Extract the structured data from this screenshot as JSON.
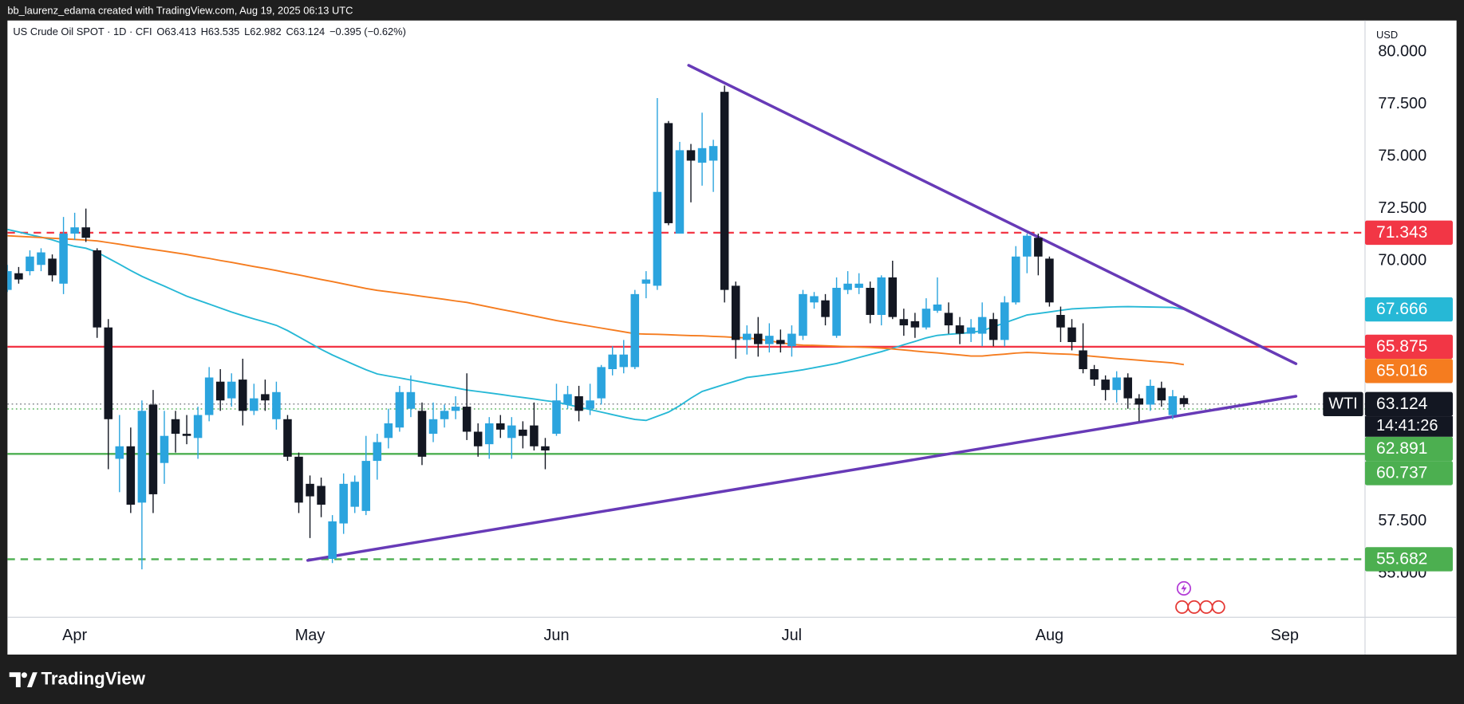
{
  "credit": "bb_laurenz_edama created with TradingView.com, Aug 19, 2025 06:13 UTC",
  "brand": "TradingView",
  "chart_data": {
    "type": "candlestick",
    "symbol": "US Crude Oil SPOT · 1D · CFI",
    "ohlc_letters": [
      "O",
      "H",
      "L",
      "C"
    ],
    "change_text": "−0.395 (−0.62%)",
    "currency": "USD",
    "symbol_tag": "WTI",
    "countdown": "14:41:26",
    "up_color": "#2ba4de",
    "down_color": "#131722",
    "categories": [
      null,
      null,
      null,
      null,
      null,
      null,
      "Apr",
      null,
      null,
      null,
      null,
      null,
      null,
      null,
      null,
      null,
      null,
      null,
      null,
      null,
      null,
      null,
      null,
      null,
      null,
      null,
      null,
      "May",
      null,
      null,
      null,
      null,
      null,
      null,
      null,
      null,
      null,
      null,
      null,
      null,
      null,
      null,
      null,
      null,
      null,
      null,
      null,
      null,
      null,
      "Jun",
      null,
      null,
      null,
      null,
      null,
      null,
      null,
      null,
      null,
      null,
      null,
      null,
      null,
      null,
      null,
      null,
      null,
      null,
      null,
      null,
      "Jul",
      null,
      null,
      null,
      null,
      null,
      null,
      null,
      null,
      null,
      null,
      null,
      null,
      null,
      null,
      null,
      null,
      null,
      null,
      null,
      null,
      null,
      null,
      "Aug",
      null,
      null,
      null,
      null,
      null,
      null,
      null,
      null,
      null,
      null,
      null,
      null,
      null,
      null,
      null,
      null,
      null,
      null,
      null,
      null,
      "Sep",
      null,
      null,
      null,
      null,
      null,
      null
    ],
    "open": [
      68.6,
      69.4,
      69.5,
      69.8,
      70.1,
      68.9,
      71.3,
      71.6,
      70.5,
      66.8,
      60.5,
      61.1,
      58.4,
      63.1,
      60.3,
      62.4,
      61.7,
      61.5,
      62.6,
      64.2,
      63.4,
      64.3,
      62.8,
      63.6,
      62.4,
      62.4,
      60.6,
      59.3,
      59.2,
      55.7,
      57.4,
      58.2,
      58.0,
      60.4,
      61.5,
      62.0,
      62.9,
      62.8,
      61.7,
      62.4,
      62.8,
      63.0,
      61.8,
      61.2,
      62.2,
      61.5,
      61.9,
      62.1,
      61.1,
      61.7,
      63.1,
      63.5,
      62.9,
      63.4,
      64.8,
      64.9,
      64.9,
      68.9,
      68.8,
      76.6,
      71.3,
      75.3,
      74.7,
      74.8,
      78.1,
      68.8,
      66.2,
      66.5,
      66.0,
      66.2,
      65.9,
      66.4,
      68.0,
      68.1,
      66.4,
      68.6,
      68.7,
      68.7,
      67.4,
      69.2,
      67.2,
      67.1,
      66.8,
      67.6,
      67.5,
      66.9,
      66.5,
      66.5,
      67.2,
      66.2,
      68.0,
      70.2,
      71.1,
      70.1,
      67.4,
      66.8,
      65.7,
      64.8,
      64.3,
      63.8,
      64.4,
      63.4,
      63.1,
      63.9,
      62.6,
      63.413,
      null,
      null,
      null,
      null,
      null,
      null,
      null,
      null,
      null,
      null,
      null,
      null,
      null,
      null,
      null
    ],
    "high": [
      69.8,
      69.7,
      70.5,
      70.6,
      70.3,
      72.1,
      72.3,
      72.5,
      70.6,
      67.2,
      62.6,
      62.0,
      63.3,
      63.8,
      62.8,
      62.8,
      62.6,
      63.0,
      64.9,
      64.8,
      64.6,
      65.3,
      64.1,
      64.3,
      64.2,
      62.6,
      60.8,
      59.7,
      59.6,
      57.8,
      59.8,
      59.7,
      61.6,
      61.7,
      62.9,
      64.0,
      64.5,
      63.2,
      63.2,
      63.1,
      63.5,
      64.6,
      62.2,
      62.5,
      62.6,
      62.5,
      62.3,
      63.2,
      61.5,
      64.1,
      64.0,
      64.0,
      64.1,
      65.0,
      65.9,
      66.2,
      68.6,
      69.5,
      77.8,
      76.7,
      75.7,
      75.6,
      77.1,
      75.8,
      78.4,
      69.0,
      66.9,
      67.3,
      67.0,
      66.7,
      66.9,
      68.6,
      68.5,
      68.4,
      69.2,
      69.5,
      69.4,
      69.0,
      69.3,
      70.0,
      67.7,
      67.5,
      68.2,
      69.2,
      68.0,
      67.3,
      67.2,
      68.0,
      67.5,
      68.3,
      70.7,
      71.3,
      71.3,
      70.2,
      67.8,
      67.2,
      67.0,
      65.0,
      64.5,
      64.7,
      64.6,
      63.6,
      64.3,
      64.2,
      63.8,
      63.535,
      null,
      null,
      null,
      null,
      null,
      null,
      null,
      null,
      null,
      null,
      null,
      null,
      null,
      null,
      null
    ],
    "low": [
      68.5,
      68.9,
      69.3,
      69.5,
      69.0,
      68.4,
      71.0,
      70.9,
      66.3,
      60.0,
      58.9,
      57.9,
      55.2,
      57.9,
      59.3,
      60.8,
      61.2,
      60.5,
      62.3,
      62.8,
      63.0,
      62.1,
      62.6,
      62.8,
      61.9,
      60.4,
      57.9,
      56.7,
      57.7,
      55.5,
      56.9,
      57.9,
      57.8,
      59.5,
      61.0,
      61.8,
      62.5,
      60.2,
      61.3,
      62.0,
      62.4,
      61.4,
      60.6,
      60.5,
      61.5,
      60.5,
      61.0,
      60.9,
      60.0,
      61.6,
      62.9,
      62.3,
      62.6,
      63.1,
      64.5,
      64.6,
      64.8,
      68.2,
      68.6,
      71.7,
      71.3,
      72.8,
      73.6,
      73.3,
      68.0,
      65.3,
      65.5,
      65.4,
      65.6,
      65.6,
      65.4,
      66.2,
      67.7,
      66.9,
      66.3,
      68.4,
      68.4,
      67.0,
      66.9,
      67.2,
      66.4,
      66.3,
      66.7,
      67.5,
      66.5,
      66.0,
      66.1,
      65.9,
      65.9,
      65.9,
      67.9,
      69.4,
      69.3,
      67.8,
      66.1,
      65.7,
      64.6,
      64.0,
      63.3,
      63.2,
      62.9,
      62.3,
      62.8,
      63.0,
      62.4,
      62.982,
      null,
      null,
      null,
      null,
      null,
      null,
      null,
      null,
      null,
      null,
      null,
      null,
      null,
      null,
      null
    ],
    "close": [
      69.5,
      69.1,
      70.2,
      70.4,
      69.3,
      71.3,
      71.6,
      71.1,
      66.8,
      62.4,
      61.1,
      58.3,
      62.8,
      58.8,
      61.6,
      61.7,
      61.6,
      62.6,
      64.4,
      63.3,
      64.2,
      62.8,
      63.4,
      63.3,
      63.7,
      60.6,
      58.4,
      58.7,
      58.3,
      57.5,
      59.3,
      59.4,
      60.4,
      61.3,
      62.2,
      63.7,
      63.7,
      60.6,
      62.4,
      62.8,
      63.0,
      61.8,
      61.1,
      62.2,
      61.9,
      62.1,
      61.6,
      61.1,
      60.9,
      63.3,
      63.6,
      62.8,
      63.3,
      64.9,
      65.5,
      65.5,
      68.4,
      69.1,
      73.3,
      71.8,
      75.3,
      74.8,
      75.4,
      75.5,
      68.6,
      66.2,
      66.5,
      66.0,
      66.4,
      66.0,
      66.5,
      68.4,
      68.3,
      67.3,
      68.7,
      68.9,
      68.9,
      67.4,
      69.2,
      67.3,
      66.9,
      66.8,
      67.7,
      67.9,
      66.9,
      66.5,
      66.8,
      67.3,
      66.2,
      68.0,
      70.2,
      71.2,
      70.2,
      68.0,
      66.8,
      66.1,
      64.8,
      64.3,
      63.8,
      64.4,
      63.4,
      63.1,
      64.0,
      63.3,
      63.5,
      63.124,
      null,
      null,
      null,
      null,
      null,
      null,
      null,
      null,
      null,
      null,
      null,
      null,
      null,
      null,
      null
    ],
    "series": [
      {
        "color": "#26b8d6",
        "values": [
          71.5,
          71.38,
          71.25,
          71.13,
          71.0,
          70.83,
          70.69,
          70.6,
          70.41,
          70.12,
          69.83,
          69.53,
          69.25,
          69.01,
          68.78,
          68.54,
          68.3,
          68.11,
          67.92,
          67.73,
          67.54,
          67.37,
          67.21,
          67.06,
          66.9,
          66.65,
          66.35,
          66.05,
          65.75,
          65.48,
          65.24,
          65.0,
          64.77,
          64.57,
          64.47,
          64.38,
          64.28,
          64.18,
          64.08,
          63.99,
          63.9,
          63.8,
          63.73,
          63.66,
          63.59,
          63.51,
          63.44,
          63.37,
          63.29,
          63.22,
          63.1,
          62.98,
          62.86,
          62.74,
          62.62,
          62.5,
          62.39,
          62.34,
          62.54,
          62.74,
          63.05,
          63.41,
          63.73,
          63.9,
          64.07,
          64.23,
          64.4,
          64.47,
          64.54,
          64.61,
          64.69,
          64.77,
          64.87,
          64.97,
          65.07,
          65.21,
          65.36,
          65.5,
          65.64,
          65.8,
          65.97,
          66.13,
          66.3,
          66.42,
          66.47,
          66.51,
          66.56,
          66.64,
          66.83,
          67.02,
          67.21,
          67.4,
          67.47,
          67.54,
          67.62,
          67.69,
          67.72,
          67.74,
          67.77,
          67.79,
          67.8,
          67.79,
          67.78,
          67.77,
          67.76,
          67.666,
          null,
          null,
          null,
          null,
          null,
          null,
          null,
          null,
          null,
          null,
          null,
          null,
          null,
          null,
          null
        ]
      },
      {
        "color": "#f57c1f",
        "values": [
          71.2,
          71.17,
          71.14,
          71.11,
          71.08,
          71.05,
          71.02,
          70.99,
          70.95,
          70.87,
          70.79,
          70.7,
          70.62,
          70.54,
          70.46,
          70.38,
          70.3,
          70.2,
          70.11,
          70.01,
          69.92,
          69.82,
          69.72,
          69.63,
          69.53,
          69.42,
          69.32,
          69.21,
          69.1,
          69.0,
          68.89,
          68.78,
          68.67,
          68.58,
          68.51,
          68.44,
          68.37,
          68.29,
          68.22,
          68.15,
          68.07,
          68.0,
          67.89,
          67.78,
          67.67,
          67.57,
          67.46,
          67.35,
          67.24,
          67.13,
          67.04,
          66.95,
          66.86,
          66.77,
          66.68,
          66.59,
          66.5,
          66.48,
          66.47,
          66.45,
          66.43,
          66.41,
          66.4,
          66.37,
          66.35,
          66.32,
          66.3,
          66.24,
          66.16,
          66.07,
          65.99,
          65.95,
          65.94,
          65.92,
          65.9,
          65.88,
          65.86,
          65.84,
          65.81,
          65.77,
          65.72,
          65.67,
          65.62,
          65.58,
          65.53,
          65.48,
          65.43,
          65.43,
          65.48,
          65.52,
          65.57,
          65.6,
          65.58,
          65.55,
          65.53,
          65.51,
          65.46,
          65.41,
          65.36,
          65.31,
          65.27,
          65.23,
          65.18,
          65.14,
          65.1,
          65.016,
          null,
          null,
          null,
          null,
          null,
          null,
          null,
          null,
          null,
          null,
          null,
          null,
          null,
          null,
          null
        ]
      }
    ],
    "levels": [
      {
        "value": 71.343,
        "color": "#f23645",
        "style": "dashed"
      },
      {
        "value": 65.875,
        "color": "#f23645",
        "style": "solid"
      },
      {
        "value": 62.891,
        "color": "#4caf50",
        "style": "dotted"
      },
      {
        "value": 60.737,
        "color": "#4caf50",
        "style": "solid"
      },
      {
        "value": 55.682,
        "color": "#4caf50",
        "style": "dashed"
      }
    ],
    "trendlines": [
      {
        "color": "#673ab7",
        "points": [
          [
            60.8,
            79.37
          ],
          [
            115,
            65.06
          ]
        ]
      },
      {
        "color": "#673ab7",
        "points": [
          [
            26.8,
            55.63
          ],
          [
            115,
            63.5
          ]
        ]
      }
    ],
    "ylim": [
      52.9,
      81.52
    ],
    "yticks": [
      {
        "value": 55,
        "label": "55.000"
      },
      {
        "value": 57.5,
        "label": "57.500"
      },
      {
        "value": 70,
        "label": "70.000"
      },
      {
        "value": 72.5,
        "label": "72.500"
      },
      {
        "value": 75,
        "label": "75.000"
      },
      {
        "value": 77.5,
        "label": "77.500"
      },
      {
        "value": 80,
        "label": "80.000"
      }
    ],
    "grid": false
  }
}
